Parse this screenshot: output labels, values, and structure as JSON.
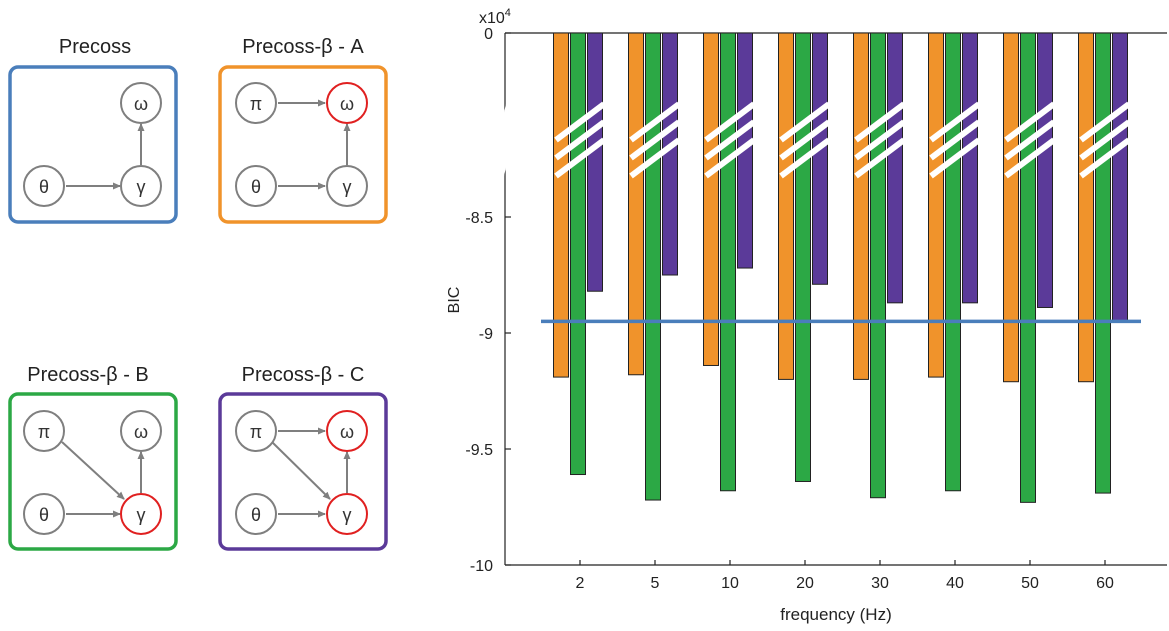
{
  "models": [
    {
      "title": "Precoss",
      "color": "#4a7ebb",
      "nodes": {
        "pi": "",
        "omega": "ω",
        "theta": "θ",
        "gamma": "γ"
      },
      "red": []
    },
    {
      "title": "Precoss-β - A",
      "color": "#f0932b",
      "nodes": {
        "pi": "π",
        "omega": "ω",
        "theta": "θ",
        "gamma": "γ"
      },
      "red": [
        "omega"
      ]
    },
    {
      "title": "Precoss-β - B",
      "color": "#2ca845",
      "nodes": {
        "pi": "π",
        "omega": "ω",
        "theta": "θ",
        "gamma": "γ"
      },
      "red": [
        "gamma"
      ]
    },
    {
      "title": "Precoss-β - C",
      "color": "#5b3a99",
      "nodes": {
        "pi": "π",
        "omega": "ω",
        "theta": "θ",
        "gamma": "γ"
      },
      "red": [
        "omega",
        "gamma"
      ]
    }
  ],
  "chart_data": {
    "type": "bar",
    "ylabel": "BIC",
    "xlabel": "frequency (Hz)",
    "scale_label": "x10",
    "scale_exponent": "4",
    "categories": [
      "2",
      "5",
      "10",
      "20",
      "30",
      "40",
      "50",
      "60"
    ],
    "ytick_labels": [
      "0",
      "-8.5",
      "-9",
      "-9.5",
      "-10"
    ],
    "ytick_values": [
      0,
      -8.5,
      -9,
      -9.5,
      -10
    ],
    "axis_break": true,
    "series": [
      {
        "color": "#f0932b",
        "values": [
          -91.9,
          -91.8,
          -91.4,
          -92.0,
          -92.0,
          -91.9,
          -92.1,
          -92.1
        ]
      },
      {
        "color": "#2ca845",
        "values": [
          -96.1,
          -97.2,
          -96.8,
          -96.4,
          -97.1,
          -96.8,
          -97.3,
          -96.9
        ]
      },
      {
        "color": "#5b3a99",
        "values": [
          -88.2,
          -87.5,
          -87.2,
          -87.9,
          -88.7,
          -88.7,
          -88.9,
          -89.5
        ]
      }
    ],
    "reference_line": {
      "value": -89.5,
      "color": "#4a7ebb"
    }
  }
}
